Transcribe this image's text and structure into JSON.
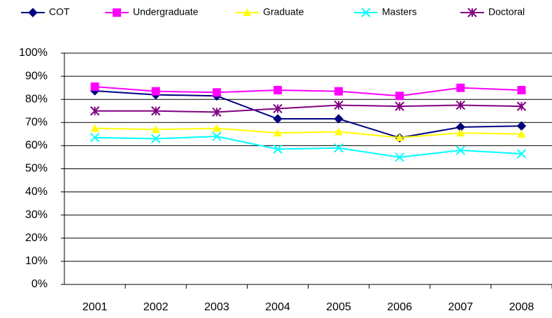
{
  "chart_data": {
    "type": "line",
    "categories": [
      "2001",
      "2002",
      "2003",
      "2004",
      "2005",
      "2006",
      "2007",
      "2008"
    ],
    "series": [
      {
        "name": "COT",
        "color": "#000080",
        "marker": "diamond",
        "values": [
          83.7,
          82,
          81.5,
          71.6,
          71.6,
          63.4,
          68,
          68.5
        ]
      },
      {
        "name": "Undergraduate",
        "color": "#ff00ff",
        "marker": "square",
        "values": [
          85.5,
          83.5,
          83,
          84,
          83.5,
          81.5,
          85,
          84
        ]
      },
      {
        "name": "Graduate",
        "color": "#ffff00",
        "marker": "triangle",
        "values": [
          67.5,
          67,
          67.5,
          65.5,
          66,
          63.5,
          65.5,
          65
        ]
      },
      {
        "name": "Masters",
        "color": "#00ffff",
        "marker": "x",
        "values": [
          63.5,
          63,
          64,
          58.5,
          59,
          55,
          58,
          56.5
        ]
      },
      {
        "name": "Doctoral",
        "color": "#800080",
        "marker": "star",
        "values": [
          75,
          75,
          74.5,
          76,
          77.5,
          77,
          77.5,
          77
        ]
      }
    ],
    "ylim": [
      0,
      100
    ],
    "yticks": [
      {
        "value": 0,
        "label": "0%"
      },
      {
        "value": 10,
        "label": "10%"
      },
      {
        "value": 20,
        "label": "20%"
      },
      {
        "value": 30,
        "label": "30%"
      },
      {
        "value": 40,
        "label": "40%"
      },
      {
        "value": 50,
        "label": "50%"
      },
      {
        "value": 60,
        "label": "60%"
      },
      {
        "value": 70,
        "label": "70%"
      },
      {
        "value": 80,
        "label": "80%"
      },
      {
        "value": 90,
        "label": "90%"
      },
      {
        "value": 100,
        "label": "100%"
      }
    ],
    "grid": true,
    "legend": "top"
  }
}
